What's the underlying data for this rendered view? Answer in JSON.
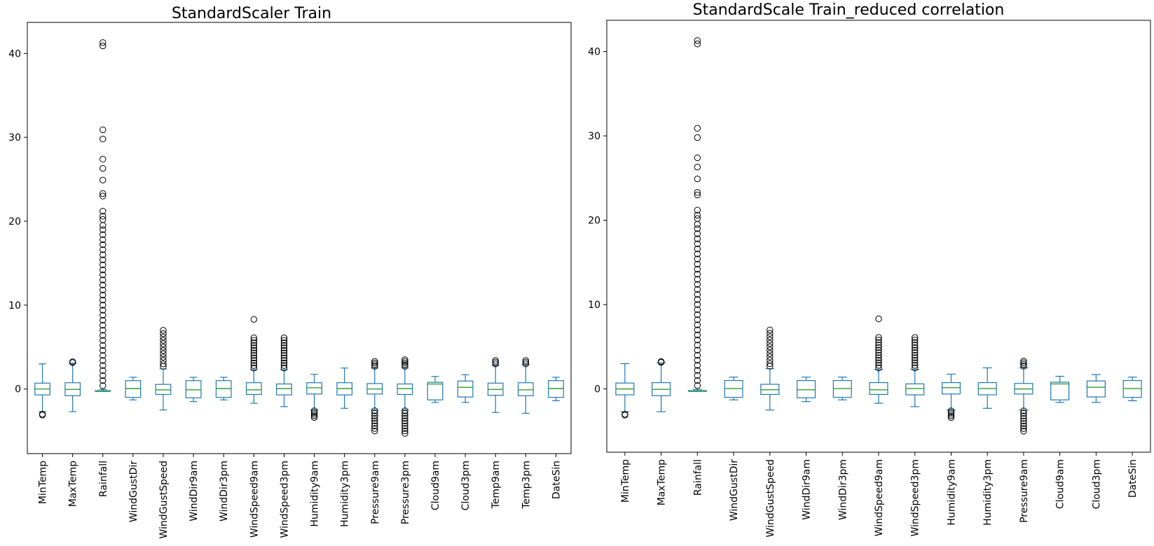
{
  "chart_data": [
    {
      "type": "box",
      "title": "StandardScaler Train",
      "xlabel": "",
      "ylabel": "",
      "ylim": [
        -7.7,
        43.7
      ],
      "yticks": [
        0,
        10,
        20,
        30,
        40
      ],
      "grid": false,
      "categories": [
        "MinTemp",
        "MaxTemp",
        "Rainfall",
        "WindGustDir",
        "WindGustSpeed",
        "WindDir9am",
        "WindDir3pm",
        "WindSpeed9am",
        "WindSpeed3pm",
        "Humidity9am",
        "Humidity3pm",
        "Pressure9am",
        "Pressure3pm",
        "Cloud9am",
        "Cloud3pm",
        "Temp9am",
        "Temp3pm",
        "DateSin"
      ],
      "boxes": [
        {
          "whislo": -2.7,
          "q1": -0.7,
          "med": 0.0,
          "q3": 0.7,
          "whishi": 3.0,
          "fliers": [
            -3.0,
            -3.1
          ]
        },
        {
          "whislo": -2.7,
          "q1": -0.8,
          "med": -0.05,
          "q3": 0.75,
          "whishi": 3.1,
          "fliers": [
            3.15,
            3.25
          ]
        },
        {
          "whislo": -0.28,
          "q1": -0.28,
          "med": -0.28,
          "q3": -0.2,
          "whishi": -0.05,
          "fliers": [
            41.3,
            40.9,
            30.9,
            29.8,
            27.4,
            26.3,
            24.9,
            23.3,
            23.0,
            21.2,
            20.6,
            20.2,
            19.5,
            19.0,
            18.4,
            17.8,
            17.2,
            16.6,
            16.0,
            15.4,
            14.8,
            14.2,
            13.6,
            13.0,
            12.4,
            11.8,
            11.2,
            10.6,
            10.0,
            9.4,
            8.8,
            8.2,
            7.6,
            7.0,
            6.4,
            5.8,
            5.2,
            4.6,
            4.0,
            3.4,
            2.8,
            2.2,
            1.6,
            1.0,
            0.4
          ]
        },
        {
          "whislo": -1.3,
          "q1": -1.0,
          "med": 0.05,
          "q3": 1.0,
          "whishi": 1.4,
          "fliers": []
        },
        {
          "whislo": -2.5,
          "q1": -0.65,
          "med": -0.1,
          "q3": 0.55,
          "whishi": 2.4,
          "fliers": [
            7.0,
            6.6,
            6.2,
            5.8,
            5.4,
            5.0,
            4.6,
            4.2,
            3.8,
            3.4,
            3.0,
            2.7
          ]
        },
        {
          "whislo": -1.5,
          "q1": -1.05,
          "med": -0.1,
          "q3": 1.0,
          "whishi": 1.4,
          "fliers": []
        },
        {
          "whislo": -1.3,
          "q1": -1.0,
          "med": 0.05,
          "q3": 1.0,
          "whishi": 1.4,
          "fliers": []
        },
        {
          "whislo": -1.7,
          "q1": -0.65,
          "med": -0.1,
          "q3": 0.75,
          "whishi": 2.3,
          "fliers": [
            8.3,
            6.1,
            5.8,
            5.5,
            5.2,
            4.9,
            4.6,
            4.3,
            4.0,
            3.7,
            3.4,
            3.1,
            2.8,
            2.5
          ]
        },
        {
          "whislo": -2.1,
          "q1": -0.7,
          "med": 0.05,
          "q3": 0.6,
          "whishi": 2.3,
          "fliers": [
            6.1,
            5.8,
            5.5,
            5.2,
            4.9,
            4.6,
            4.3,
            4.0,
            3.7,
            3.4,
            3.1,
            2.8,
            2.5
          ]
        },
        {
          "whislo": -2.5,
          "q1": -0.6,
          "med": 0.15,
          "q3": 0.75,
          "whishi": 1.75,
          "fliers": [
            -2.6,
            -2.8,
            -3.0,
            -3.2,
            -3.4
          ]
        },
        {
          "whislo": -2.3,
          "q1": -0.7,
          "med": 0.05,
          "q3": 0.75,
          "whishi": 2.5,
          "fliers": []
        },
        {
          "whislo": -2.5,
          "q1": -0.6,
          "med": 0.0,
          "q3": 0.65,
          "whishi": 2.5,
          "fliers": [
            3.3,
            3.1,
            2.9,
            2.7,
            -2.6,
            -2.9,
            -3.2,
            -3.5,
            -3.8,
            -4.1,
            -4.4,
            -4.7,
            -5.0
          ]
        },
        {
          "whislo": -2.5,
          "q1": -0.65,
          "med": 0.05,
          "q3": 0.6,
          "whishi": 2.5,
          "fliers": [
            3.5,
            3.3,
            3.1,
            2.9,
            2.7,
            -2.6,
            -2.9,
            -3.2,
            -3.5,
            -3.8,
            -4.1,
            -4.4,
            -4.7,
            -5.0,
            -5.3
          ]
        },
        {
          "whislo": -1.6,
          "q1": -1.3,
          "med": 0.6,
          "q3": 0.8,
          "whishi": 1.5,
          "fliers": []
        },
        {
          "whislo": -1.6,
          "q1": -0.95,
          "med": 0.2,
          "q3": 0.95,
          "whishi": 1.7,
          "fliers": []
        },
        {
          "whislo": -2.8,
          "q1": -0.75,
          "med": -0.05,
          "q3": 0.7,
          "whishi": 2.8,
          "fliers": [
            3.0,
            3.2,
            3.4
          ]
        },
        {
          "whislo": -2.9,
          "q1": -0.8,
          "med": -0.1,
          "q3": 0.75,
          "whishi": 2.9,
          "fliers": [
            3.0,
            3.2,
            3.4
          ]
        },
        {
          "whislo": -1.4,
          "q1": -1.0,
          "med": 0.05,
          "q3": 1.0,
          "whishi": 1.4,
          "fliers": []
        }
      ]
    },
    {
      "type": "box",
      "title": "StandardScale Train_reduced correlation",
      "xlabel": "",
      "ylabel": "",
      "ylim": [
        -7.5,
        43.7
      ],
      "yticks": [
        0,
        10,
        20,
        30,
        40
      ],
      "grid": false,
      "categories": [
        "MinTemp",
        "MaxTemp",
        "Rainfall",
        "WindGustDir",
        "WindGustSpeed",
        "WindDir9am",
        "WindDir3pm",
        "WindSpeed9am",
        "WindSpeed3pm",
        "Humidity9am",
        "Humidity3pm",
        "Pressure9am",
        "Cloud9am",
        "Cloud3pm",
        "DateSin"
      ],
      "boxes": [
        {
          "whislo": -2.7,
          "q1": -0.7,
          "med": 0.0,
          "q3": 0.7,
          "whishi": 3.0,
          "fliers": [
            -3.0,
            -3.1
          ]
        },
        {
          "whislo": -2.7,
          "q1": -0.8,
          "med": -0.05,
          "q3": 0.75,
          "whishi": 3.1,
          "fliers": [
            3.15,
            3.25
          ]
        },
        {
          "whislo": -0.28,
          "q1": -0.28,
          "med": -0.28,
          "q3": -0.2,
          "whishi": -0.05,
          "fliers": [
            41.3,
            40.9,
            30.9,
            29.8,
            27.4,
            26.3,
            24.9,
            23.3,
            23.0,
            21.2,
            20.6,
            20.2,
            19.5,
            19.0,
            18.4,
            17.8,
            17.2,
            16.6,
            16.0,
            15.4,
            14.8,
            14.2,
            13.6,
            13.0,
            12.4,
            11.8,
            11.2,
            10.6,
            10.0,
            9.4,
            8.8,
            8.2,
            7.6,
            7.0,
            6.4,
            5.8,
            5.2,
            4.6,
            4.0,
            3.4,
            2.8,
            2.2,
            1.6,
            1.0,
            0.4
          ]
        },
        {
          "whislo": -1.3,
          "q1": -1.0,
          "med": 0.05,
          "q3": 1.0,
          "whishi": 1.4,
          "fliers": []
        },
        {
          "whislo": -2.5,
          "q1": -0.65,
          "med": -0.1,
          "q3": 0.55,
          "whishi": 2.4,
          "fliers": [
            7.0,
            6.6,
            6.2,
            5.8,
            5.4,
            5.0,
            4.6,
            4.2,
            3.8,
            3.4,
            3.0,
            2.7
          ]
        },
        {
          "whislo": -1.5,
          "q1": -1.05,
          "med": -0.1,
          "q3": 1.0,
          "whishi": 1.4,
          "fliers": []
        },
        {
          "whislo": -1.3,
          "q1": -1.0,
          "med": 0.05,
          "q3": 1.0,
          "whishi": 1.4,
          "fliers": []
        },
        {
          "whislo": -1.7,
          "q1": -0.65,
          "med": -0.1,
          "q3": 0.75,
          "whishi": 2.3,
          "fliers": [
            8.3,
            6.1,
            5.8,
            5.5,
            5.2,
            4.9,
            4.6,
            4.3,
            4.0,
            3.7,
            3.4,
            3.1,
            2.8,
            2.5
          ]
        },
        {
          "whislo": -2.1,
          "q1": -0.7,
          "med": 0.05,
          "q3": 0.6,
          "whishi": 2.3,
          "fliers": [
            6.1,
            5.8,
            5.5,
            5.2,
            4.9,
            4.6,
            4.3,
            4.0,
            3.7,
            3.4,
            3.1,
            2.8,
            2.5
          ]
        },
        {
          "whislo": -2.5,
          "q1": -0.6,
          "med": 0.15,
          "q3": 0.75,
          "whishi": 1.75,
          "fliers": [
            -2.6,
            -2.8,
            -3.0,
            -3.2,
            -3.4
          ]
        },
        {
          "whislo": -2.3,
          "q1": -0.7,
          "med": 0.05,
          "q3": 0.75,
          "whishi": 2.5,
          "fliers": []
        },
        {
          "whislo": -2.5,
          "q1": -0.6,
          "med": 0.0,
          "q3": 0.65,
          "whishi": 2.5,
          "fliers": [
            3.3,
            3.1,
            2.9,
            2.7,
            -2.6,
            -2.9,
            -3.2,
            -3.5,
            -3.8,
            -4.1,
            -4.4,
            -4.7,
            -5.0
          ]
        },
        {
          "whislo": -1.6,
          "q1": -1.3,
          "med": 0.6,
          "q3": 0.8,
          "whishi": 1.5,
          "fliers": []
        },
        {
          "whislo": -1.6,
          "q1": -0.95,
          "med": 0.2,
          "q3": 0.95,
          "whishi": 1.7,
          "fliers": []
        },
        {
          "whislo": -1.4,
          "q1": -1.0,
          "med": 0.05,
          "q3": 1.0,
          "whishi": 1.4,
          "fliers": []
        }
      ]
    }
  ],
  "colors": {
    "box": "#1f77b4",
    "median": "#2ca02c",
    "flier": "#000000"
  }
}
